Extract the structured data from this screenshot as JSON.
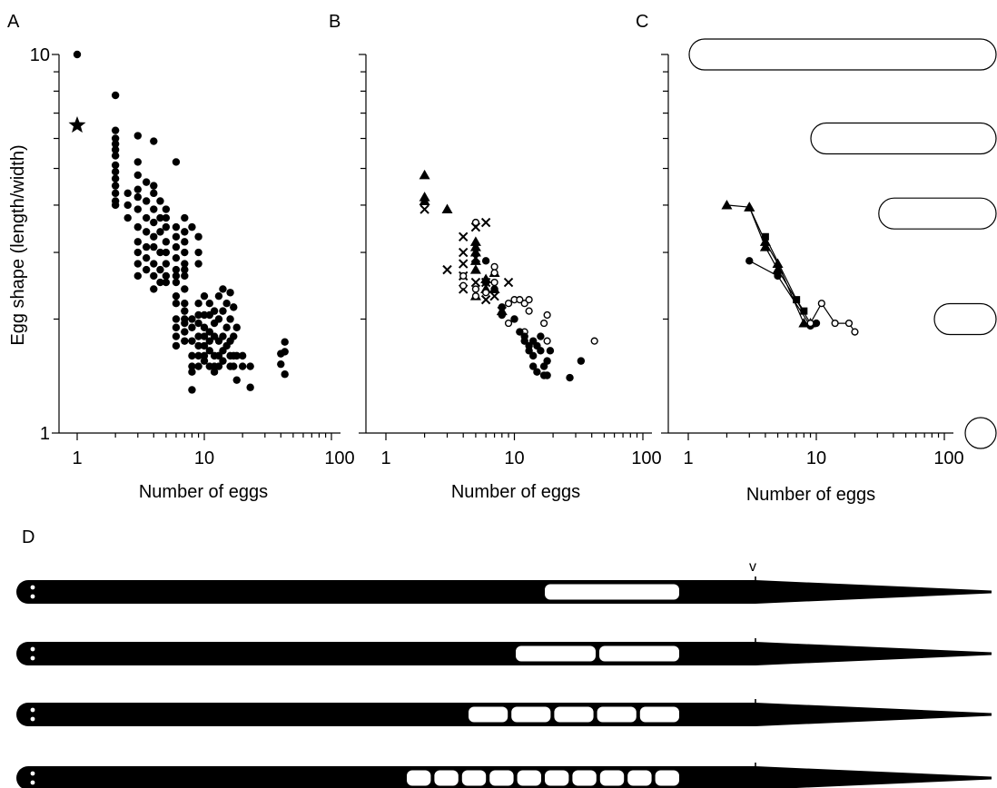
{
  "colors": {
    "ink": "#000000",
    "background": "#ffffff"
  },
  "chart_data": [
    {
      "panel": "A",
      "type": "scatter",
      "xlabel": "Number of eggs",
      "ylabel": "Egg shape (length/width)",
      "x_scale": "log",
      "y_scale": "log",
      "xlim": [
        1,
        100
      ],
      "ylim": [
        1,
        10
      ],
      "x_ticks": [
        "1",
        "10",
        "100"
      ],
      "y_ticks": [
        "1",
        "10"
      ],
      "series": [
        {
          "marker": "filled-circle",
          "points": [
            [
              1,
              10
            ],
            [
              2,
              7.8
            ],
            [
              2,
              6.3
            ],
            [
              2,
              6.0
            ],
            [
              2,
              5.8
            ],
            [
              2,
              5.6
            ],
            [
              2,
              5.4
            ],
            [
              2,
              5.1
            ],
            [
              2,
              4.9
            ],
            [
              2,
              4.7
            ],
            [
              2,
              4.5
            ],
            [
              2,
              4.3
            ],
            [
              2,
              4.1
            ],
            [
              2,
              4.0
            ],
            [
              2.5,
              4.3
            ],
            [
              2.5,
              4.0
            ],
            [
              2.5,
              3.7
            ],
            [
              3,
              6.1
            ],
            [
              3,
              5.2
            ],
            [
              3,
              4.8
            ],
            [
              3,
              4.4
            ],
            [
              3,
              4.2
            ],
            [
              3,
              3.9
            ],
            [
              3,
              3.5
            ],
            [
              3,
              3.2
            ],
            [
              3,
              3.0
            ],
            [
              3,
              2.8
            ],
            [
              3,
              2.6
            ],
            [
              3.5,
              4.6
            ],
            [
              3.5,
              4.1
            ],
            [
              3.5,
              3.7
            ],
            [
              3.5,
              3.4
            ],
            [
              3.5,
              3.1
            ],
            [
              3.5,
              2.9
            ],
            [
              3.5,
              2.7
            ],
            [
              4,
              5.9
            ],
            [
              4,
              4.5
            ],
            [
              4,
              4.3
            ],
            [
              4,
              3.9
            ],
            [
              4,
              3.6
            ],
            [
              4,
              3.3
            ],
            [
              4,
              3.1
            ],
            [
              4,
              2.8
            ],
            [
              4,
              2.6
            ],
            [
              4,
              2.4
            ],
            [
              4.5,
              4.1
            ],
            [
              4.5,
              3.7
            ],
            [
              4.5,
              3.4
            ],
            [
              4.5,
              3.0
            ],
            [
              4.5,
              2.7
            ],
            [
              4.5,
              2.5
            ],
            [
              5,
              3.9
            ],
            [
              5,
              3.7
            ],
            [
              5,
              3.5
            ],
            [
              5,
              3.2
            ],
            [
              5,
              3.0
            ],
            [
              5,
              2.8
            ],
            [
              5,
              2.6
            ],
            [
              5,
              2.5
            ],
            [
              6,
              5.2
            ],
            [
              6,
              3.5
            ],
            [
              6,
              3.3
            ],
            [
              6,
              3.1
            ],
            [
              6,
              2.9
            ],
            [
              6,
              2.7
            ],
            [
              6,
              2.6
            ],
            [
              6,
              2.5
            ],
            [
              6,
              2.3
            ],
            [
              6,
              2.2
            ],
            [
              6,
              2.0
            ],
            [
              6,
              1.9
            ],
            [
              6,
              1.8
            ],
            [
              6,
              1.7
            ],
            [
              7,
              3.7
            ],
            [
              7,
              3.4
            ],
            [
              7,
              3.2
            ],
            [
              7,
              3.0
            ],
            [
              7,
              2.8
            ],
            [
              7,
              2.7
            ],
            [
              7,
              2.6
            ],
            [
              7,
              2.4
            ],
            [
              7,
              2.2
            ],
            [
              7,
              2.1
            ],
            [
              7,
              2.0
            ],
            [
              7,
              1.95
            ],
            [
              7,
              1.85
            ],
            [
              7,
              1.75
            ],
            [
              8,
              3.5
            ],
            [
              8,
              2.0
            ],
            [
              8,
              1.9
            ],
            [
              8,
              1.75
            ],
            [
              8,
              1.6
            ],
            [
              8,
              1.5
            ],
            [
              8,
              1.45
            ],
            [
              8,
              1.3
            ],
            [
              9,
              3.3
            ],
            [
              9,
              3.0
            ],
            [
              9,
              2.8
            ],
            [
              9,
              2.2
            ],
            [
              9,
              2.05
            ],
            [
              9,
              1.95
            ],
            [
              9,
              1.8
            ],
            [
              9,
              1.7
            ],
            [
              9,
              1.6
            ],
            [
              9,
              1.5
            ],
            [
              10,
              2.3
            ],
            [
              10,
              2.05
            ],
            [
              10,
              1.9
            ],
            [
              10,
              1.8
            ],
            [
              10,
              1.7
            ],
            [
              10,
              1.6
            ],
            [
              10,
              1.55
            ],
            [
              11,
              2.2
            ],
            [
              11,
              2.05
            ],
            [
              11,
              1.85
            ],
            [
              11,
              1.75
            ],
            [
              11,
              1.65
            ],
            [
              11,
              1.5
            ],
            [
              12,
              2.1
            ],
            [
              12,
              1.95
            ],
            [
              12,
              1.8
            ],
            [
              12,
              1.6
            ],
            [
              12,
              1.5
            ],
            [
              12,
              1.45
            ],
            [
              13,
              2.3
            ],
            [
              13,
              2.0
            ],
            [
              13,
              1.75
            ],
            [
              13,
              1.6
            ],
            [
              13,
              1.5
            ],
            [
              14,
              2.4
            ],
            [
              14,
              2.1
            ],
            [
              14,
              1.8
            ],
            [
              14,
              1.65
            ],
            [
              14,
              1.55
            ],
            [
              15,
              2.2
            ],
            [
              15,
              1.9
            ],
            [
              15,
              1.7
            ],
            [
              16,
              2.35
            ],
            [
              16,
              2.0
            ],
            [
              16,
              1.75
            ],
            [
              16,
              1.6
            ],
            [
              16,
              1.5
            ],
            [
              17,
              2.15
            ],
            [
              17,
              1.8
            ],
            [
              17,
              1.6
            ],
            [
              17,
              1.5
            ],
            [
              18,
              1.9
            ],
            [
              18,
              1.6
            ],
            [
              18,
              1.38
            ],
            [
              20,
              1.6
            ],
            [
              20,
              1.5
            ],
            [
              23,
              1.5
            ],
            [
              23,
              1.32
            ],
            [
              40,
              1.62
            ],
            [
              40,
              1.52
            ],
            [
              43,
              1.74
            ],
            [
              43,
              1.64
            ],
            [
              43,
              1.43
            ]
          ]
        },
        {
          "marker": "star",
          "points": [
            [
              1,
              6.5
            ]
          ]
        }
      ]
    },
    {
      "panel": "B",
      "type": "scatter",
      "xlabel": "Number of eggs",
      "x_scale": "log",
      "y_scale": "log",
      "xlim": [
        1,
        100
      ],
      "ylim": [
        1,
        10
      ],
      "x_ticks": [
        "1",
        "10",
        "100"
      ],
      "series": [
        {
          "marker": "filled-triangle",
          "points": [
            [
              2,
              4.8
            ],
            [
              2,
              4.2
            ],
            [
              2,
              4.1
            ],
            [
              3,
              3.9
            ],
            [
              5,
              3.2
            ],
            [
              5,
              3.1
            ],
            [
              5,
              3.0
            ],
            [
              5,
              2.85
            ],
            [
              5,
              2.7
            ],
            [
              5,
              2.3
            ],
            [
              6,
              2.55
            ],
            [
              6,
              2.4
            ],
            [
              7,
              2.65
            ],
            [
              7,
              2.4
            ],
            [
              8,
              2.1
            ]
          ]
        },
        {
          "marker": "cross",
          "points": [
            [
              2,
              3.9
            ],
            [
              3,
              2.7
            ],
            [
              4,
              3.3
            ],
            [
              4,
              3.0
            ],
            [
              4,
              2.8
            ],
            [
              4,
              2.6
            ],
            [
              4,
              2.4
            ],
            [
              5,
              3.5
            ],
            [
              5,
              2.9
            ],
            [
              5,
              2.5
            ],
            [
              6,
              3.6
            ],
            [
              6,
              2.5
            ],
            [
              6,
              2.25
            ],
            [
              7,
              2.3
            ],
            [
              8,
              2.1
            ],
            [
              9,
              2.5
            ]
          ]
        },
        {
          "marker": "open-circle",
          "points": [
            [
              4,
              2.6
            ],
            [
              4,
              2.45
            ],
            [
              5,
              3.6
            ],
            [
              5,
              2.4
            ],
            [
              5,
              2.3
            ],
            [
              6,
              2.35
            ],
            [
              7,
              2.75
            ],
            [
              7,
              2.65
            ],
            [
              7,
              2.5
            ],
            [
              9,
              2.2
            ],
            [
              9,
              1.95
            ],
            [
              10,
              2.25
            ],
            [
              11,
              2.25
            ],
            [
              12,
              2.2
            ],
            [
              12,
              1.85
            ],
            [
              13,
              2.25
            ],
            [
              13,
              2.1
            ],
            [
              17,
              1.95
            ],
            [
              18,
              2.05
            ],
            [
              18,
              1.75
            ],
            [
              42,
              1.75
            ]
          ]
        },
        {
          "marker": "filled-circle",
          "points": [
            [
              6,
              2.85
            ],
            [
              6,
              2.5
            ],
            [
              7,
              2.4
            ],
            [
              8,
              2.15
            ],
            [
              8,
              2.05
            ],
            [
              10,
              2.0
            ],
            [
              11,
              1.85
            ],
            [
              12,
              1.8
            ],
            [
              12,
              1.75
            ],
            [
              13,
              1.7
            ],
            [
              13,
              1.65
            ],
            [
              14,
              1.75
            ],
            [
              14,
              1.6
            ],
            [
              14,
              1.5
            ],
            [
              15,
              1.7
            ],
            [
              15,
              1.45
            ],
            [
              16,
              1.8
            ],
            [
              16,
              1.65
            ],
            [
              17,
              1.5
            ],
            [
              17,
              1.42
            ],
            [
              18,
              1.55
            ],
            [
              18,
              1.42
            ],
            [
              19,
              1.65
            ],
            [
              27,
              1.4
            ],
            [
              33,
              1.55
            ]
          ]
        }
      ]
    },
    {
      "panel": "C",
      "type": "line",
      "xlabel": "Number of eggs",
      "x_scale": "log",
      "y_scale": "log",
      "xlim": [
        1,
        100
      ],
      "ylim": [
        1,
        10
      ],
      "x_ticks": [
        "1",
        "10",
        "100"
      ],
      "series": [
        {
          "marker": "filled-triangle",
          "points": [
            [
              2,
              4.0
            ],
            [
              3,
              3.95
            ],
            [
              4,
              3.2
            ],
            [
              5,
              2.8
            ],
            [
              8,
              1.95
            ]
          ]
        },
        {
          "marker": "filled-triangle",
          "points": [
            [
              3,
              3.95
            ],
            [
              4,
              3.1
            ],
            [
              5,
              2.7
            ],
            [
              9,
              1.95
            ]
          ]
        },
        {
          "marker": "filled-square",
          "points": [
            [
              4,
              3.3
            ],
            [
              7,
              2.25
            ],
            [
              8,
              2.1
            ]
          ]
        },
        {
          "marker": "filled-circle",
          "points": [
            [
              3,
              2.85
            ],
            [
              5,
              2.6
            ],
            [
              9,
              1.92
            ],
            [
              10,
              1.95
            ]
          ]
        },
        {
          "marker": "open-circle",
          "points": [
            [
              9,
              1.95
            ],
            [
              11,
              2.2
            ],
            [
              14,
              1.95
            ],
            [
              18,
              1.95
            ],
            [
              20,
              1.85
            ]
          ]
        }
      ],
      "egg_outlines": [
        {
          "aspect_ratio": 10
        },
        {
          "aspect_ratio": 6
        },
        {
          "aspect_ratio": 3.8
        },
        {
          "aspect_ratio": 2
        },
        {
          "aspect_ratio": 1
        }
      ]
    },
    {
      "panel": "D",
      "type": "diagram",
      "marker_label": "v",
      "rows": [
        {
          "egg_count": 1
        },
        {
          "egg_count": 2
        },
        {
          "egg_count": 5
        },
        {
          "egg_count": 10
        }
      ]
    }
  ],
  "panel_letters": [
    "A",
    "B",
    "C",
    "D"
  ]
}
